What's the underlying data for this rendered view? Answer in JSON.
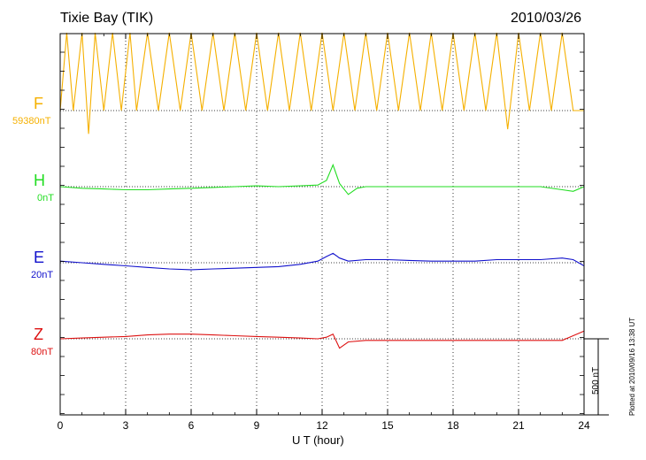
{
  "header": {
    "station": "Tixie Bay (TIK)",
    "date": "2010/03/26"
  },
  "channels": [
    {
      "name": "F",
      "base": "59380nT",
      "color": "#f5b000"
    },
    {
      "name": "H",
      "base": "0nT",
      "color": "#22dd22"
    },
    {
      "name": "E",
      "base": "20nT",
      "color": "#1010cc"
    },
    {
      "name": "Z",
      "base": "80nT",
      "color": "#dd1111"
    }
  ],
  "scale_bar": {
    "label": "500 nT"
  },
  "footer": {
    "plotted": "Plotted at 2010/09/16 13:38 UT"
  },
  "chart_data": {
    "type": "line",
    "title": "Tixie Bay (TIK)",
    "date": "2010/03/26",
    "xlabel": "U T (hour)",
    "xlim": [
      0,
      24
    ],
    "xticks": [
      "0",
      "3",
      "6",
      "9",
      "12",
      "15",
      "18",
      "21",
      "24"
    ],
    "grid": "vertical dotted every 3 hours",
    "scale_nT_per_bar": 500,
    "series": [
      {
        "name": "F",
        "baseline_nT": 59380,
        "x": [
          0,
          0.3,
          0.6,
          1.0,
          1.3,
          1.6,
          2.0,
          2.4,
          2.8,
          3.2,
          3.5,
          4.0,
          4.5,
          5.0,
          5.5,
          6.0,
          6.5,
          7.0,
          7.5,
          8.0,
          8.5,
          9.0,
          9.5,
          10.0,
          10.5,
          11.0,
          11.5,
          12.0,
          12.5,
          13.0,
          13.5,
          14.0,
          14.5,
          15.0,
          15.5,
          16.0,
          16.5,
          17.0,
          17.5,
          18.0,
          18.5,
          19.0,
          19.5,
          20.0,
          20.5,
          21.0,
          21.5,
          22.0,
          22.5,
          23.0,
          23.5,
          24.0
        ],
        "values": [
          0,
          500,
          0,
          500,
          -150,
          500,
          0,
          500,
          0,
          500,
          0,
          500,
          0,
          500,
          0,
          500,
          0,
          500,
          0,
          500,
          0,
          500,
          0,
          500,
          0,
          500,
          0,
          500,
          0,
          500,
          0,
          500,
          0,
          500,
          0,
          500,
          0,
          500,
          0,
          500,
          0,
          500,
          0,
          500,
          -120,
          500,
          0,
          500,
          0,
          500,
          0,
          0
        ]
      },
      {
        "name": "H",
        "baseline_nT": 0,
        "x": [
          0,
          1,
          2,
          3,
          4,
          5,
          6,
          7,
          8,
          9,
          10,
          11,
          11.8,
          12.2,
          12.5,
          12.8,
          13.2,
          13.6,
          14,
          15,
          16,
          17,
          18,
          19,
          20,
          21,
          22,
          23,
          23.5,
          24
        ],
        "values": [
          0,
          -10,
          -15,
          -20,
          -20,
          -15,
          -10,
          -5,
          0,
          5,
          0,
          5,
          10,
          40,
          140,
          20,
          -50,
          -10,
          0,
          0,
          0,
          0,
          0,
          0,
          0,
          0,
          0,
          -20,
          -30,
          0
        ]
      },
      {
        "name": "E",
        "baseline_nT": 20,
        "x": [
          0,
          1,
          2,
          3,
          4,
          5,
          6,
          7,
          8,
          9,
          10,
          11,
          11.8,
          12.2,
          12.5,
          12.8,
          13.2,
          14,
          15,
          16,
          17,
          18,
          19,
          20,
          21,
          22,
          23,
          23.5,
          24
        ],
        "values": [
          10,
          0,
          -10,
          -20,
          -30,
          -40,
          -45,
          -40,
          -35,
          -30,
          -25,
          -10,
          10,
          40,
          60,
          30,
          10,
          20,
          20,
          15,
          10,
          10,
          10,
          20,
          20,
          20,
          30,
          20,
          -20
        ]
      },
      {
        "name": "Z",
        "baseline_nT": 80,
        "x": [
          0,
          1,
          2,
          3,
          4,
          5,
          6,
          7,
          8,
          9,
          10,
          11,
          11.8,
          12.2,
          12.5,
          12.8,
          13.2,
          14,
          15,
          16,
          17,
          18,
          19,
          20,
          21,
          22,
          23,
          23.5,
          24
        ],
        "values": [
          0,
          5,
          10,
          15,
          25,
          30,
          30,
          25,
          20,
          15,
          10,
          5,
          0,
          10,
          30,
          -60,
          -20,
          -10,
          -10,
          -10,
          -10,
          -10,
          -10,
          -10,
          -10,
          -10,
          -10,
          20,
          50
        ]
      }
    ]
  }
}
